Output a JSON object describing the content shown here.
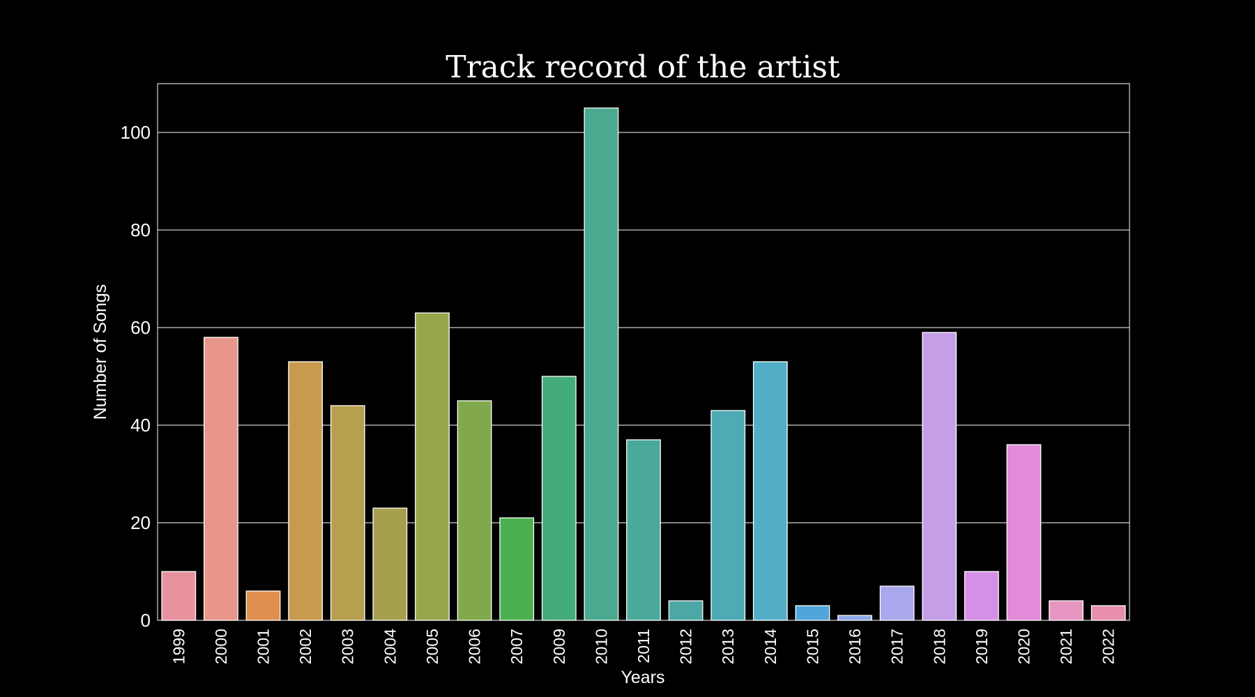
{
  "chart_data": {
    "type": "bar",
    "title": "Track record of the artist",
    "xlabel": "Years",
    "ylabel": "Number of Songs",
    "categories": [
      "1999",
      "2000",
      "2001",
      "2002",
      "2003",
      "2004",
      "2005",
      "2006",
      "2007",
      "2009",
      "2010",
      "2011",
      "2012",
      "2013",
      "2014",
      "2015",
      "2016",
      "2017",
      "2018",
      "2019",
      "2020",
      "2021",
      "2022"
    ],
    "values": [
      10,
      58,
      6,
      53,
      44,
      23,
      63,
      45,
      21,
      50,
      105,
      37,
      4,
      43,
      53,
      3,
      1,
      7,
      59,
      10,
      36,
      4,
      3
    ],
    "ylim": [
      0,
      110
    ],
    "yticks": [
      "0",
      "20",
      "40",
      "60",
      "80",
      "100"
    ],
    "grid": "horizontal",
    "colors": [
      "#e8929f",
      "#e8968a",
      "#e08f4f",
      "#c99a4e",
      "#b79f4e",
      "#a6a04e",
      "#96a64a",
      "#82a84c",
      "#4bb04f",
      "#44ab7a",
      "#4aaa90",
      "#4ba99b",
      "#4ba8a5",
      "#4cabb5",
      "#52aec7",
      "#4fa6db",
      "#8ca8e6",
      "#aaa8ec",
      "#c49fe8",
      "#d68fe6",
      "#e28bd8",
      "#e895c2",
      "#e88fae"
    ],
    "background": "#000000",
    "foreground": "#ffffff"
  }
}
